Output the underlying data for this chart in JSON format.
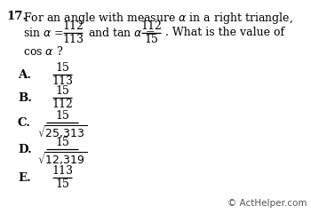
{
  "background_color": "#ffffff",
  "text_color": "#000000",
  "watermark_color": "#555555",
  "q_num": "17.",
  "q_line1": "For an angle with measure $\\alpha$ in a right triangle,",
  "q_line2a": "sin $\\alpha$ =",
  "q_frac1_num": "112",
  "q_frac1_den": "113",
  "q_line2b": " and tan $\\alpha$ =",
  "q_frac2_num": "112",
  "q_frac2_den": "15",
  "q_line2c": ". What is the value of",
  "q_line3": "cos $\\alpha$ ?",
  "choices": [
    {
      "label": "A.",
      "num": "15",
      "den": "113",
      "sqrt_den": false
    },
    {
      "label": "B.",
      "num": "15",
      "den": "112",
      "sqrt_den": false
    },
    {
      "label": "C.",
      "num": "15",
      "den": "\\sqrt{25{,}313}",
      "sqrt_den": true
    },
    {
      "label": "D.",
      "num": "15",
      "den": "\\sqrt{12{,}319}",
      "sqrt_den": true
    },
    {
      "label": "E.",
      "num": "113",
      "den": "15",
      "sqrt_den": false
    }
  ],
  "watermark": "© ActHelper.com"
}
